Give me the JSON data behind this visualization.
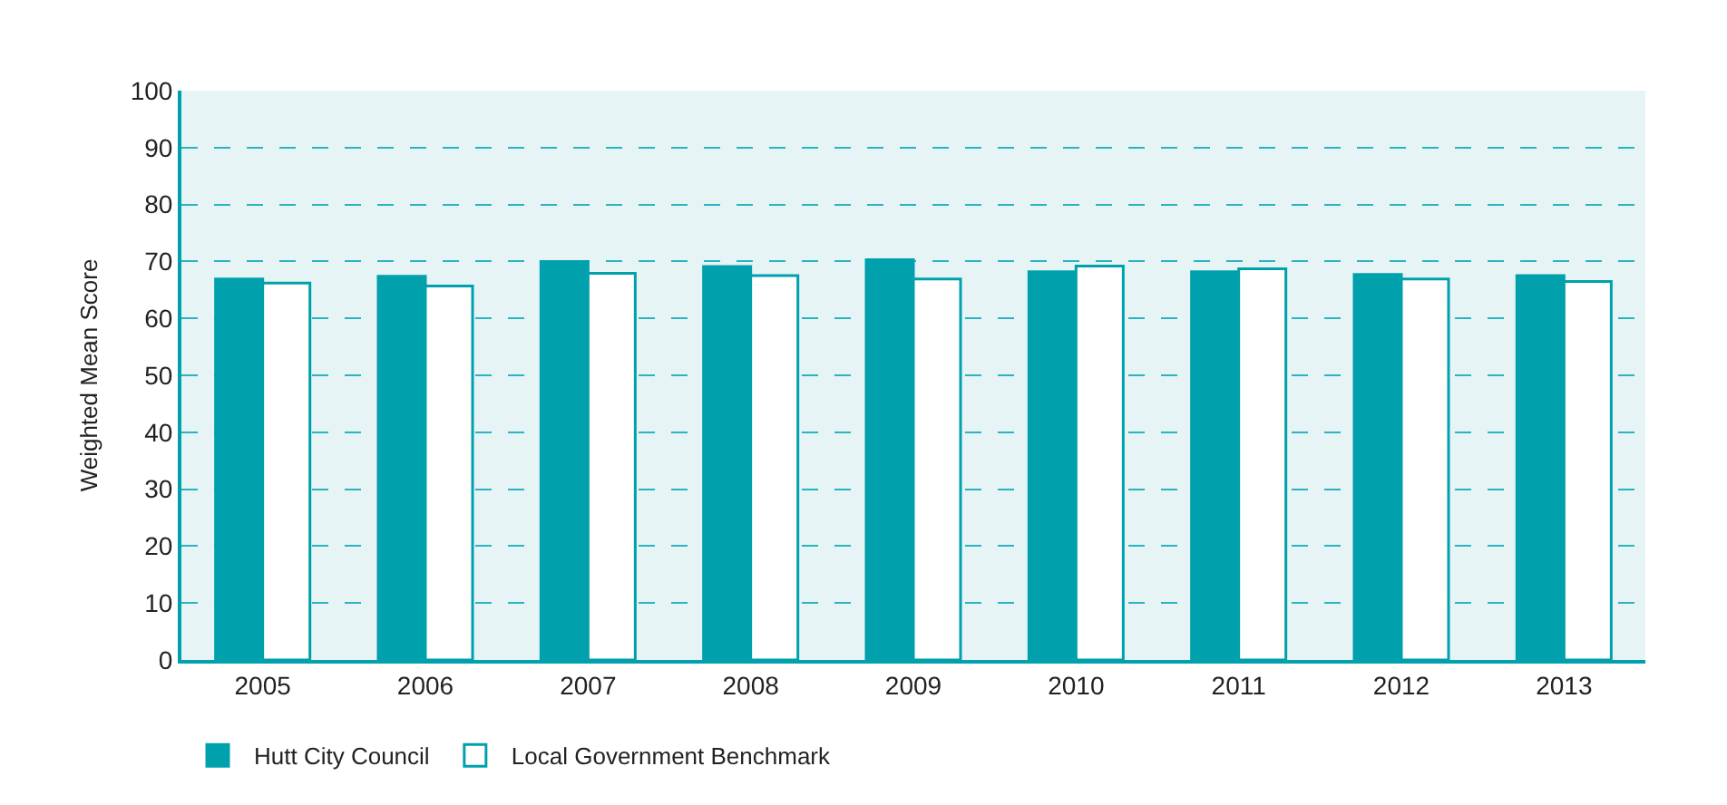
{
  "chart_data": {
    "type": "bar",
    "ylabel": "Weighted Mean Score",
    "categories": [
      "2005",
      "2006",
      "2007",
      "2008",
      "2009",
      "2010",
      "2011",
      "2012",
      "2013"
    ],
    "series": [
      {
        "name": "Hutt City Council",
        "color": "#00a0ad",
        "values": [
          66.9,
          67.4,
          70.0,
          69.1,
          70.3,
          68.2,
          68.2,
          67.7,
          67.5
        ]
      },
      {
        "name": "Local Government Benchmark",
        "color": "#ffffff",
        "values": [
          66.2,
          65.7,
          67.9,
          67.5,
          66.9,
          69.2,
          68.7,
          66.9,
          66.5
        ]
      }
    ],
    "ylim": [
      0,
      100
    ],
    "yticks": [
      0,
      10,
      20,
      30,
      40,
      50,
      60,
      70,
      80,
      90,
      100
    ],
    "grid": "y",
    "legend": "bottom left"
  }
}
